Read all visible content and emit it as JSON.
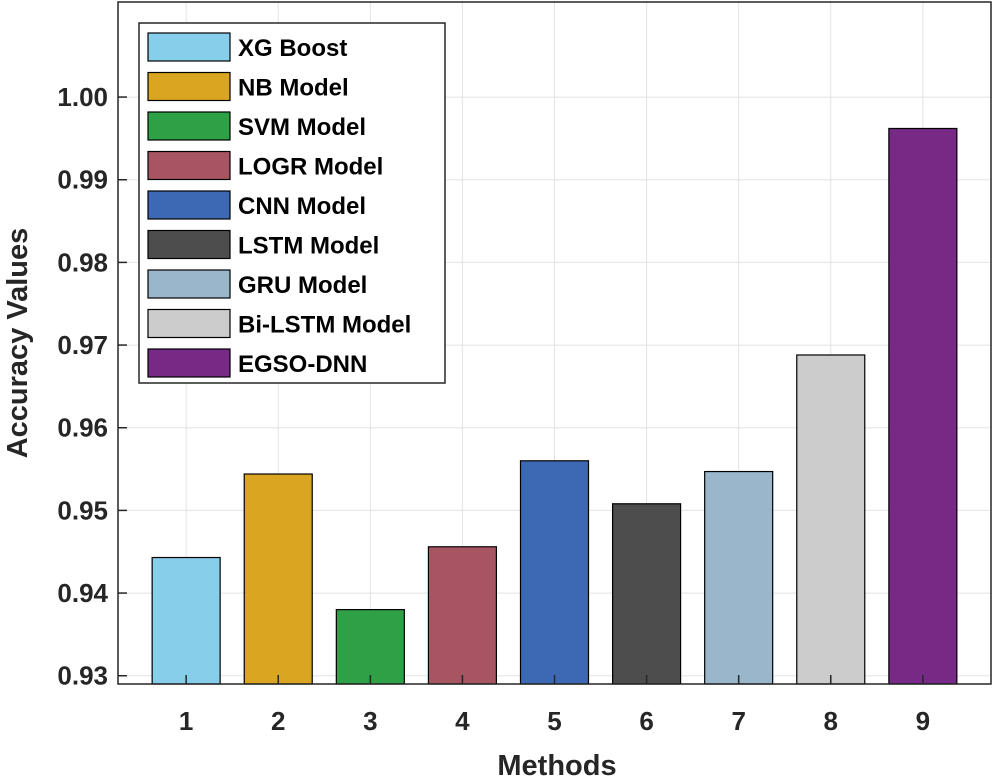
{
  "chart_data": {
    "type": "bar",
    "title": "",
    "xlabel": "Methods",
    "ylabel": "Accuracy Values",
    "categories": [
      "1",
      "2",
      "3",
      "4",
      "5",
      "6",
      "7",
      "8",
      "9"
    ],
    "values": [
      0.9443,
      0.9544,
      0.938,
      0.9456,
      0.956,
      0.9508,
      0.9547,
      0.9688,
      0.9962
    ],
    "ylim": [
      0.929,
      1.0115
    ],
    "yticks": [
      0.93,
      0.94,
      0.95,
      0.96,
      0.97,
      0.98,
      0.99,
      1.0
    ],
    "ytick_labels": [
      "0.93",
      "0.94",
      "0.95",
      "0.96",
      "0.97",
      "0.98",
      "0.99",
      "1.00"
    ],
    "grid": true,
    "legend_position": "top-left",
    "series_names": [
      "XG Boost",
      "NB Model",
      "SVM Model",
      "LOGR Model",
      "CNN Model",
      "LSTM Model",
      "GRU Model",
      "Bi-LSTM Model",
      "EGSO-DNN"
    ],
    "colors": [
      "#87CEEB",
      "#DAA520",
      "#2EA045",
      "#A85563",
      "#3D68B4",
      "#4D4D4D",
      "#9AB6CB",
      "#CCCCCC",
      "#762A85"
    ]
  }
}
